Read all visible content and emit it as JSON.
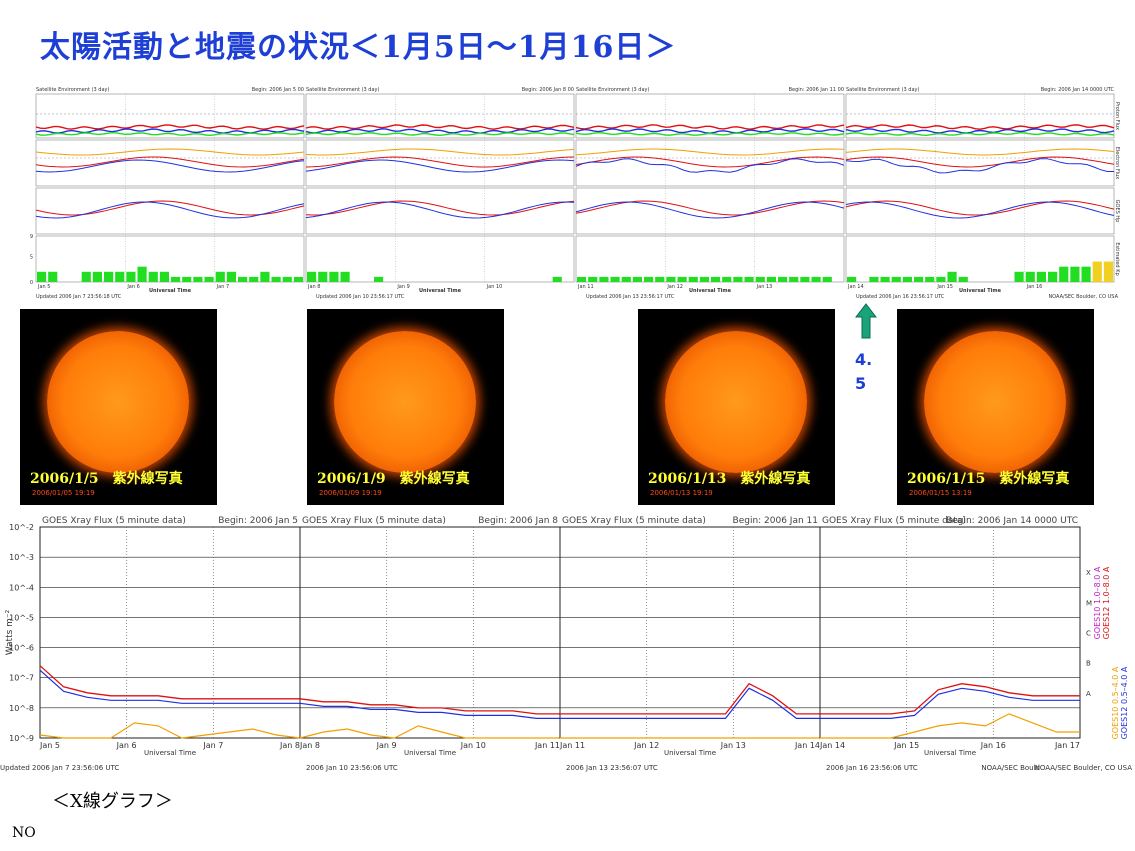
{
  "title": "太陽活動と地震の状況＜1月5日～1月16日＞",
  "xray_caption": "＜X線グラフ＞",
  "footer_text": "NO",
  "arrow_label_lines": [
    "4.",
    "5"
  ],
  "arrow_color": "#1aa37a",
  "colors": {
    "red": "#e01010",
    "blue": "#2030e0",
    "orange": "#f0a000",
    "green": "#22dd22",
    "yellow": "#f0d020",
    "magenta": "#c020c0",
    "title": "#1d3fd6"
  },
  "sun_images": [
    {
      "caption": "2006/1/5　紫外線写真",
      "stamp": "2006/01/05 19:19"
    },
    {
      "caption": "2006/1/9　紫外線写真",
      "stamp": "2006/01/09 19:19"
    },
    {
      "caption": "2006/1/13　紫外線写真",
      "stamp": "2006/01/13 19:19"
    },
    {
      "caption": "2006/1/15　紫外線写真",
      "stamp": "2006/01/15 13:19"
    }
  ],
  "chart_data": [
    {
      "type": "line",
      "title": "Satellite Environment (3 day)",
      "panels": [
        {
          "begin": "Begin:  2006 Jan 5 00",
          "updated": "Updated 2006 Jan  7 23:56:18 UTC",
          "days": [
            "Jan 5",
            "Jan 6",
            "Jan 7"
          ]
        },
        {
          "begin": "Begin:  2006 Jan 8 00",
          "updated": "Updated 2006 Jan 10 23:56:17 UTC",
          "days": [
            "Jan 8",
            "Jan 9",
            "Jan 10"
          ]
        },
        {
          "begin": "Begin:  2006 Jan 11 00",
          "updated": "Updated 2006 Jan 13 23:56:17 UTC",
          "days": [
            "Jan 11",
            "Jan 12",
            "Jan 13"
          ]
        },
        {
          "begin": "Begin:  2006 Jan 14 0000 UTC",
          "updated": "Updated 2006 Jan 16 23:56:17 UTC",
          "days": [
            "Jan 14",
            "Jan 15",
            "Jan 16"
          ]
        }
      ],
      "credit": "NOAA/SEC Boulder, CO USA",
      "xlabel": "Universal Time",
      "row_labels": [
        "Proton Flux",
        "Electron Flux",
        "GOES Hp",
        "Estimated Kp"
      ],
      "kp_scale": [
        0,
        5,
        9
      ],
      "kp_values": [
        [
          2,
          2,
          0,
          0,
          2,
          2,
          2,
          2,
          2,
          3,
          2,
          2,
          1,
          1,
          1,
          1,
          2,
          2,
          1,
          1,
          2,
          1,
          1,
          1
        ],
        [
          2,
          2,
          2,
          2,
          0,
          0,
          1,
          0,
          0,
          0,
          0,
          0,
          0,
          0,
          0,
          0,
          0,
          0,
          0,
          0,
          0,
          0,
          1,
          0
        ],
        [
          1,
          1,
          1,
          1,
          1,
          1,
          1,
          1,
          1,
          1,
          1,
          1,
          1,
          1,
          1,
          1,
          1,
          1,
          1,
          1,
          1,
          1,
          1,
          0
        ],
        [
          1,
          0,
          1,
          1,
          1,
          1,
          1,
          1,
          1,
          2,
          1,
          0,
          0,
          0,
          0,
          2,
          2,
          2,
          2,
          3,
          3,
          3,
          4,
          4
        ]
      ],
      "kp_unit": "Kp"
    },
    {
      "type": "line",
      "title": "GOES Xray Flux (5 minute data)",
      "panels": [
        {
          "begin": "Begin:  2006 Jan 5",
          "updated": "Updated 2006 Jan  7 23:56:06 UTC",
          "days": [
            "Jan 5",
            "Jan 6",
            "Jan 7",
            "Jan 8"
          ]
        },
        {
          "begin": "Begin:  2006 Jan 8",
          "updated": "2006 Jan 10 23:56:06 UTC",
          "days": [
            "Jan 8",
            "Jan 9",
            "Jan 10",
            "Jan 11"
          ]
        },
        {
          "begin": "Begin:  2006 Jan 11",
          "updated": "2006 Jan 13 23:56:07 UTC",
          "days": [
            "Jan 11",
            "Jan 12",
            "Jan 13",
            "Jan 14"
          ]
        },
        {
          "begin": "Begin:  2006 Jan 14 0000 UTC",
          "updated": "2006 Jan 16 23:56:06 UTC",
          "days": [
            "Jan 14",
            "Jan 15",
            "Jan 16",
            "Jan 17"
          ]
        }
      ],
      "credit_short": "NOAA/SEC Bould",
      "credit": "NOAA/SEC Boulder, CO USA",
      "xlabel": "Universal Time",
      "ylabel": "Watts m⁻²",
      "ytick_exponents": [
        -2,
        -3,
        -4,
        -5,
        -6,
        -7,
        -8,
        -9
      ],
      "ylim_exponents": [
        -9,
        -2
      ],
      "flare_classes": [
        "X",
        "M",
        "C",
        "B",
        "A"
      ],
      "legend": [
        {
          "name": "GOES10 1.0–8.0 A",
          "color": "#c020c0"
        },
        {
          "name": "GOES12 1.0–8.0 A",
          "color": "#e01010"
        },
        {
          "name": "GOES10 0.5–4.0 A",
          "color": "#f0a000"
        },
        {
          "name": "GOES12 0.5–4.0 A",
          "color": "#2030e0"
        }
      ],
      "long_baseline_log": [
        [
          -6.6,
          -7.3,
          -7.5,
          -7.6,
          -7.6,
          -7.6,
          -7.7,
          -7.7,
          -7.7,
          -7.7,
          -7.7,
          -7.7
        ],
        [
          -7.7,
          -7.8,
          -7.8,
          -7.9,
          -7.9,
          -8.0,
          -8.0,
          -8.1,
          -8.1,
          -8.1,
          -8.2,
          -8.2
        ],
        [
          -8.2,
          -8.2,
          -8.2,
          -8.2,
          -8.2,
          -8.2,
          -8.2,
          -8.2,
          -7.2,
          -7.6,
          -8.2,
          -8.2
        ],
        [
          -8.2,
          -8.2,
          -8.2,
          -8.2,
          -8.1,
          -7.4,
          -7.2,
          -7.3,
          -7.5,
          -7.6,
          -7.6,
          -7.6
        ]
      ],
      "short_baseline_log": [
        [
          -8.9,
          -9.0,
          -9.0,
          -9.0,
          -8.5,
          -8.6,
          -9.0,
          -8.9,
          -8.8,
          -8.7,
          -8.9,
          -9.0
        ],
        [
          -9.0,
          -8.8,
          -8.7,
          -8.9,
          -9.0,
          -8.6,
          -8.8,
          -9.0,
          -9.0,
          -9.0,
          -9.0,
          -9.0
        ],
        [
          -9.0,
          -9.0,
          -9.0,
          -9.0,
          -9.0,
          -9.0,
          -9.0,
          -9.0,
          -9.0,
          -9.0,
          -9.0,
          -9.0
        ],
        [
          -9.0,
          -9.0,
          -9.0,
          -9.0,
          -8.8,
          -8.6,
          -8.5,
          -8.6,
          -8.2,
          -8.5,
          -8.8,
          -8.8
        ]
      ]
    }
  ]
}
